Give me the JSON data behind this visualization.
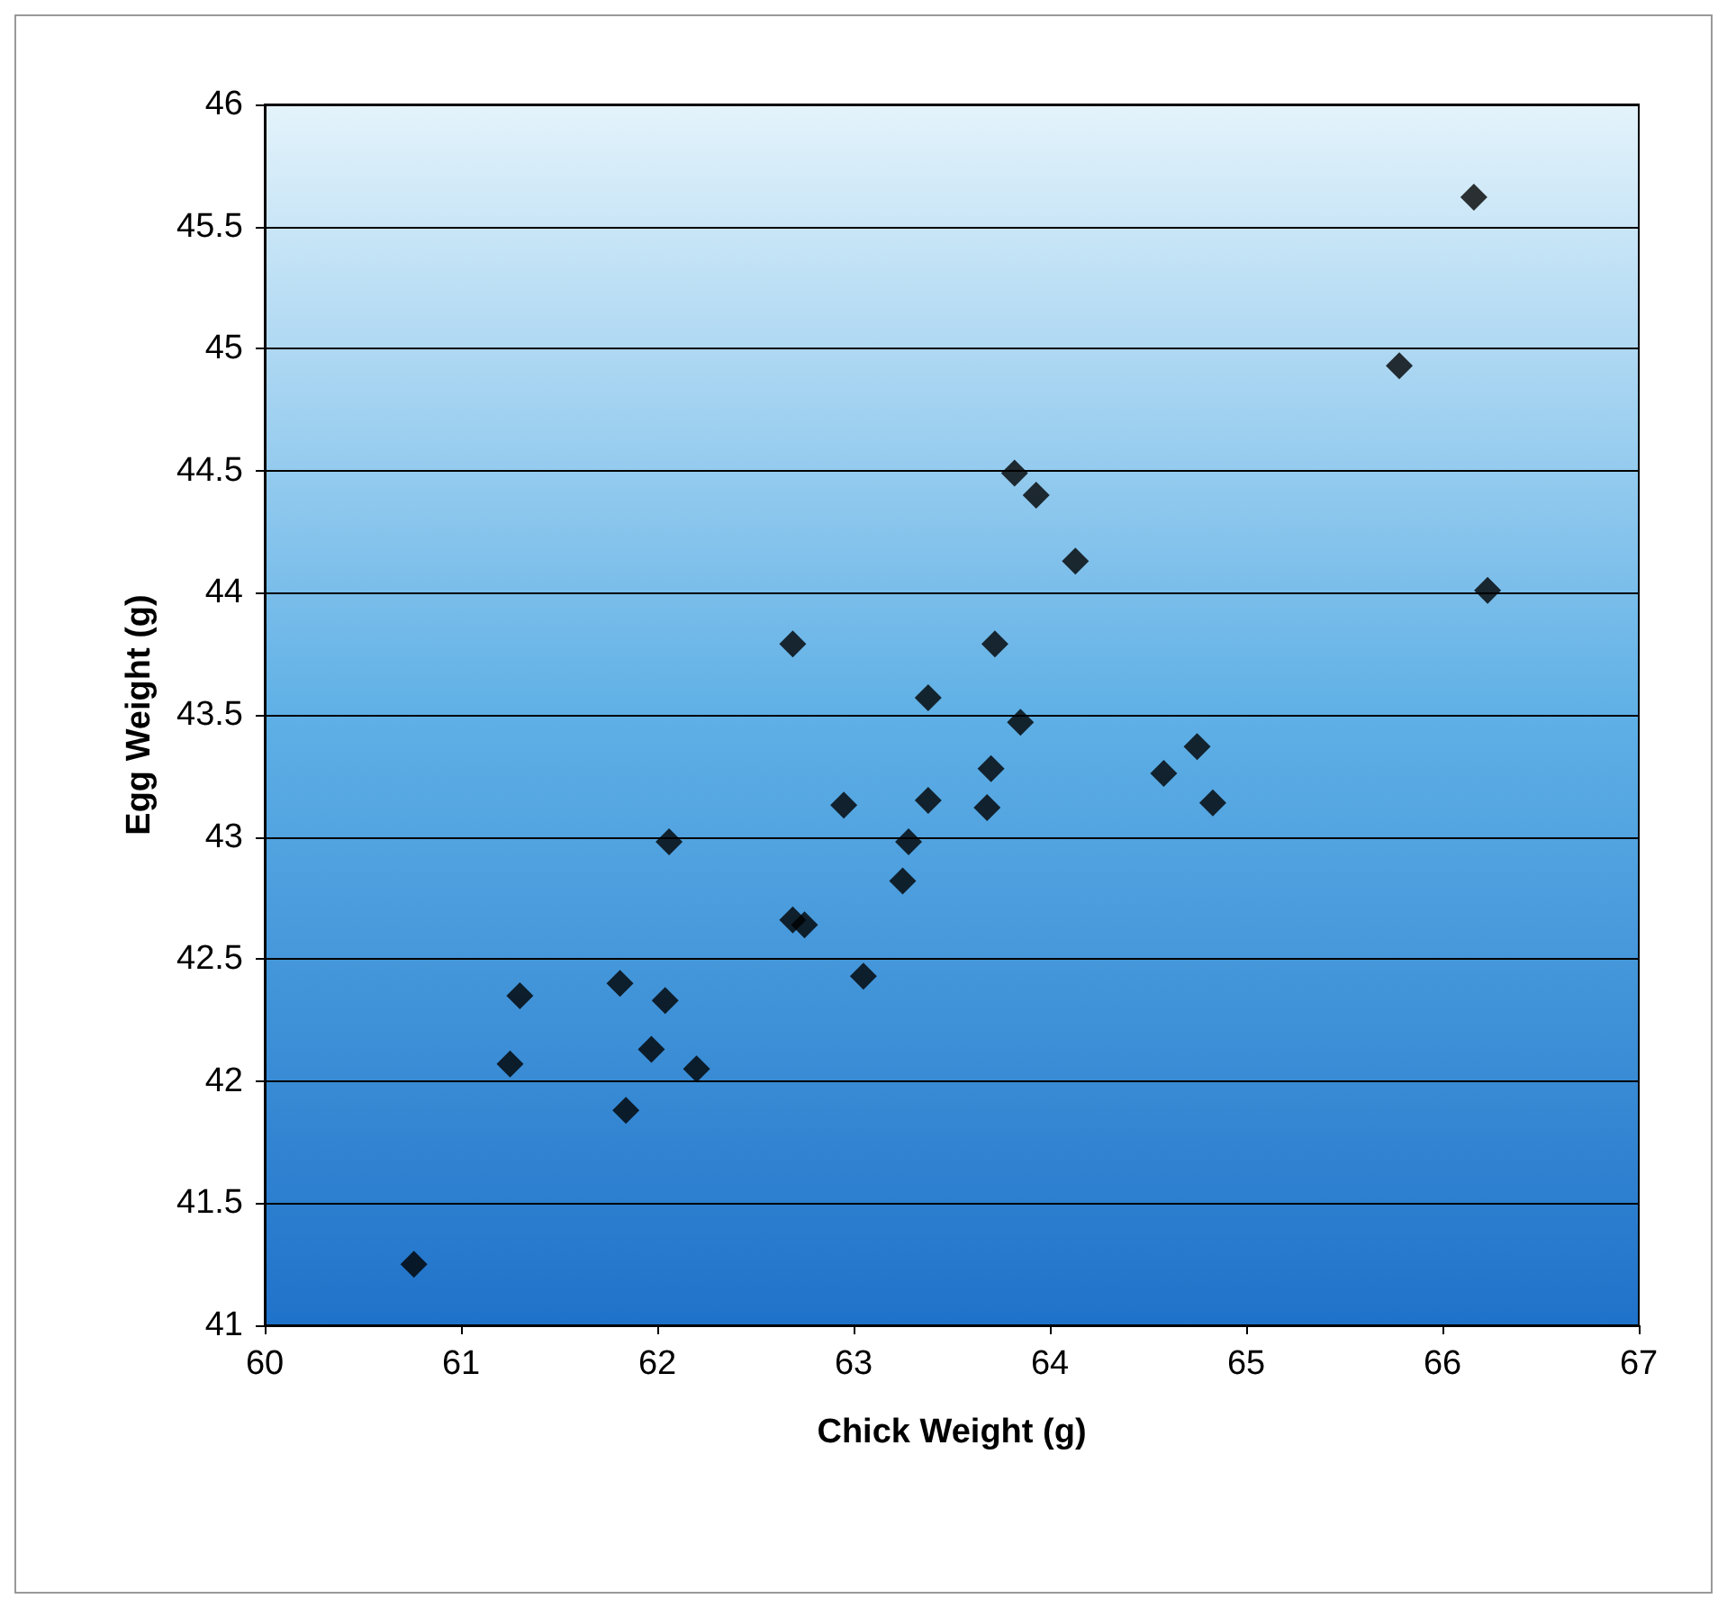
{
  "chart_data": {
    "type": "scatter",
    "xlabel": "Chick Weight (g)",
    "ylabel": "Egg Weight (g)",
    "x": [
      62.69,
      63.72,
      63.38,
      63.85,
      63.7,
      64.58,
      62.95,
      63.38,
      63.68,
      63.28,
      63.25,
      62.69,
      62.75,
      63.05,
      62.06,
      61.81,
      61.3,
      62.04,
      61.97,
      61.25,
      62.2,
      61.84,
      60.76,
      66.16,
      65.78,
      63.82,
      63.93,
      64.13,
      66.23,
      64.75,
      64.83
    ],
    "values": [
      43.79,
      43.79,
      43.57,
      43.47,
      43.28,
      43.26,
      43.13,
      43.15,
      43.12,
      42.98,
      42.82,
      42.66,
      42.64,
      42.43,
      42.98,
      42.4,
      42.35,
      42.33,
      42.13,
      42.07,
      42.05,
      41.88,
      41.25,
      45.62,
      44.93,
      44.49,
      44.4,
      44.13,
      44.01,
      43.37,
      43.14
    ],
    "color": "#000000",
    "marker": "diamond",
    "grid": "y",
    "xlim": [
      60,
      67
    ],
    "xticks": [
      60,
      61,
      62,
      63,
      64,
      65,
      66,
      67
    ],
    "ylim": [
      41,
      46
    ],
    "yticks": [
      41,
      41.5,
      42,
      42.5,
      43,
      43.5,
      44,
      44.5,
      45,
      45.5,
      46
    ]
  }
}
